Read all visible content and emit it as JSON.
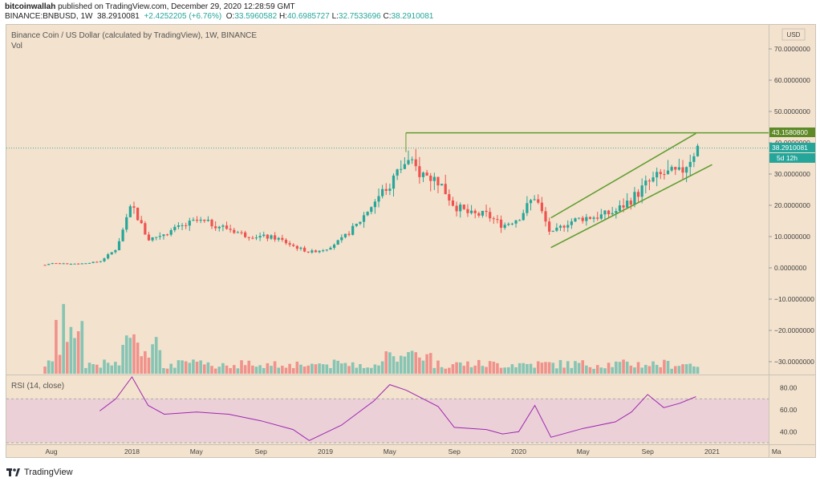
{
  "header": {
    "publisher": "bitcoinwallah",
    "published_text": " published on TradingView.com, December 29, 2020 12:28:59 GMT",
    "symbol": "BINANCE:BNBUSD, 1W",
    "last": "38.2910081",
    "change": "+2.4252205 (+6.76%)",
    "open_label": "O:",
    "open": "33.5960582",
    "high_label": "H:",
    "high": "40.6985727",
    "low_label": "L:",
    "low": "32.7533696",
    "close_label": "C:",
    "close": "38.2910081"
  },
  "legend": {
    "title": "Binance Coin / US Dollar (calculated by TradingView), 1W, BINANCE",
    "vol": "Vol",
    "rsi": "RSI (14, close)"
  },
  "colors": {
    "bg": "#f3e2cd",
    "up": "#26a69a",
    "down": "#ef5350",
    "vol_up": "#86c4b4",
    "vol_down": "#f0928c",
    "trend": "#5d9c2e",
    "rsi_line": "#9c27b0",
    "rsi_band": "#ecd0d8"
  },
  "price_axis": {
    "unit": "USD",
    "ticks": [
      "70.0000000",
      "60.0000000",
      "50.0000000",
      "40.0000000",
      "30.0000000",
      "20.0000000",
      "10.0000000",
      "0.0000000",
      "−10.0000000",
      "−20.0000000",
      "−30.0000000"
    ],
    "level_label": "43.1580800",
    "price_label": "38.2910081",
    "countdown": "5d 12h"
  },
  "rsi_axis": {
    "ticks": [
      "80.00",
      "60.00",
      "40.00"
    ]
  },
  "time_axis": {
    "labels": [
      "Aug",
      "2018",
      "May",
      "Sep",
      "2019",
      "May",
      "Sep",
      "2020",
      "May",
      "Sep",
      "2021",
      "Ma"
    ]
  },
  "footer": {
    "brand": "TradingView"
  },
  "chart_data": {
    "type": "candlestick",
    "title": "Binance Coin / US Dollar (calculated by TradingView), 1W, BINANCE",
    "y_unit": "USD",
    "ylim": [
      -35,
      75
    ],
    "x_range": [
      "2017-07",
      "2021-03"
    ],
    "series_approx_weekly_close": [
      [
        "2017-07",
        0.1
      ],
      [
        "2017-08",
        1.5
      ],
      [
        "2017-09",
        1.3
      ],
      [
        "2017-10",
        1.5
      ],
      [
        "2017-11",
        2.0
      ],
      [
        "2017-12",
        6.0
      ],
      [
        "2018-01",
        20.0
      ],
      [
        "2018-02",
        9.0
      ],
      [
        "2018-03",
        11.0
      ],
      [
        "2018-04",
        13.0
      ],
      [
        "2018-05",
        15.0
      ],
      [
        "2018-06",
        14.0
      ],
      [
        "2018-07",
        12.5
      ],
      [
        "2018-08",
        10.5
      ],
      [
        "2018-09",
        10.0
      ],
      [
        "2018-10",
        9.5
      ],
      [
        "2018-11",
        7.0
      ],
      [
        "2018-12",
        5.0
      ],
      [
        "2019-01",
        6.0
      ],
      [
        "2019-02",
        9.0
      ],
      [
        "2019-03",
        14.0
      ],
      [
        "2019-04",
        21.0
      ],
      [
        "2019-05",
        27.0
      ],
      [
        "2019-06",
        34.0
      ],
      [
        "2019-07",
        30.0
      ],
      [
        "2019-08",
        28.0
      ],
      [
        "2019-09",
        20.0
      ],
      [
        "2019-10",
        17.0
      ],
      [
        "2019-11",
        17.0
      ],
      [
        "2019-12",
        13.5
      ],
      [
        "2020-01",
        16.0
      ],
      [
        "2020-02",
        23.0
      ],
      [
        "2020-03",
        10.5
      ],
      [
        "2020-04",
        14.5
      ],
      [
        "2020-05",
        16.0
      ],
      [
        "2020-06",
        16.5
      ],
      [
        "2020-07",
        18.0
      ],
      [
        "2020-08",
        22.0
      ],
      [
        "2020-09",
        27.0
      ],
      [
        "2020-10",
        30.0
      ],
      [
        "2020-11",
        30.0
      ],
      [
        "2020-12",
        38.29
      ]
    ],
    "horizontal_level": 43.15808,
    "channel": {
      "upper": [
        [
          "2020-03",
          16.0
        ],
        [
          "2020-12",
          43.0
        ]
      ],
      "lower": [
        [
          "2020-03",
          6.5
        ],
        [
          "2021-01",
          33.0
        ]
      ]
    },
    "rsi": {
      "name": "RSI (14, close)",
      "ylim": [
        30,
        90
      ],
      "band": [
        30,
        70
      ],
      "series": [
        [
          "2017-11",
          59
        ],
        [
          "2017-12",
          70
        ],
        [
          "2018-01",
          90
        ],
        [
          "2018-02",
          64
        ],
        [
          "2018-03",
          56
        ],
        [
          "2018-05",
          58
        ],
        [
          "2018-07",
          56
        ],
        [
          "2018-09",
          50
        ],
        [
          "2018-11",
          42
        ],
        [
          "2018-12",
          32
        ],
        [
          "2019-02",
          46
        ],
        [
          "2019-04",
          68
        ],
        [
          "2019-05",
          83
        ],
        [
          "2019-06",
          78
        ],
        [
          "2019-08",
          63
        ],
        [
          "2019-09",
          44
        ],
        [
          "2019-11",
          42
        ],
        [
          "2019-12",
          38
        ],
        [
          "2020-01",
          40
        ],
        [
          "2020-02",
          64
        ],
        [
          "2020-03",
          35
        ],
        [
          "2020-05",
          43
        ],
        [
          "2020-07",
          49
        ],
        [
          "2020-08",
          58
        ],
        [
          "2020-09",
          74
        ],
        [
          "2020-10",
          62
        ],
        [
          "2020-11",
          66
        ],
        [
          "2020-12",
          72
        ]
      ]
    }
  }
}
